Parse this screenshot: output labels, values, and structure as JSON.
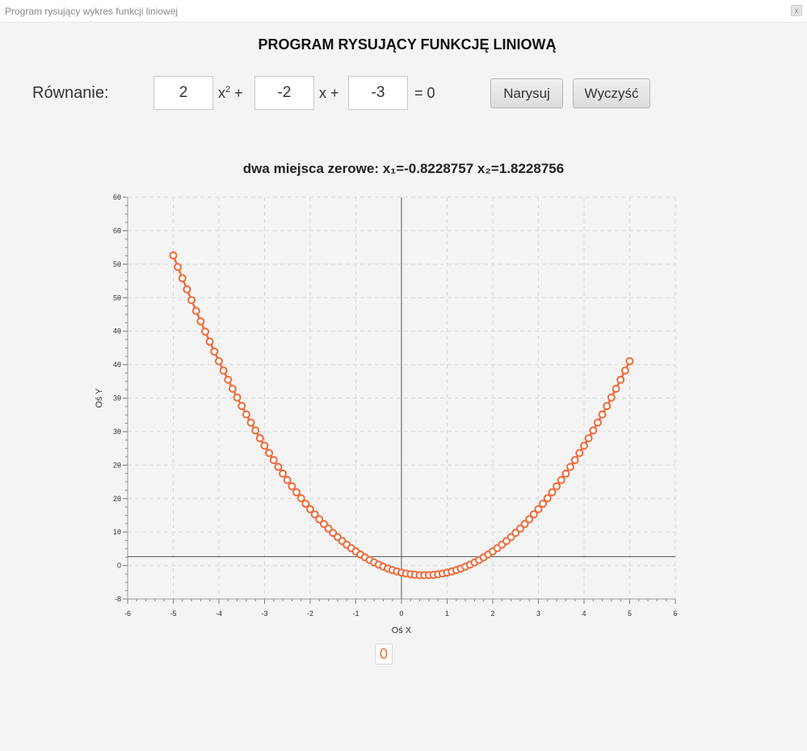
{
  "window": {
    "title": "Program rysujący wykres funkcji liniowej",
    "close_symbol": "x"
  },
  "header": {
    "title": "PROGRAM RYSUJĄCY FUNKCJĘ LINIOWĄ"
  },
  "equation": {
    "label": "Równanie:",
    "a": "2",
    "b": "-2",
    "c": "-3",
    "x2_term_base": "x",
    "x2_term_exp": "2",
    "plus1": "+",
    "x_term": "x +",
    "eq_zero": "= 0"
  },
  "buttons": {
    "draw": "Narysuj",
    "clear": "Wyczyść"
  },
  "roots": {
    "label": "dwa miejsca zerowe:",
    "x1": "x₁=-0.8228757",
    "x2": "x₂=1.8228756"
  },
  "badge": {
    "value": "0"
  },
  "colors": {
    "series": "#f06a3a",
    "axis": "#555555",
    "grid": "#d8d8d8"
  },
  "chart_data": {
    "type": "line",
    "xlabel": "Oś X",
    "ylabel": "Oś Y",
    "xlim": [
      -6,
      6
    ],
    "ylim": [
      -8,
      68
    ],
    "x_ticks": [
      "-6",
      "-5",
      "-4",
      "-3",
      "-2",
      "-1",
      "0",
      "1",
      "2",
      "3",
      "4",
      "5",
      "6"
    ],
    "y_ticks": [
      "-8",
      "0",
      "1θ",
      "2θ",
      "2θ",
      "3θ",
      "3θ",
      "4θ",
      "4θ",
      "5θ",
      "5θ",
      "6θ",
      "6θ"
    ],
    "grid": true,
    "series": [
      {
        "coefficients": [
          2,
          -2,
          -3
        ],
        "x_start": -5,
        "x_end": 5,
        "step": 0.1,
        "marker": "open-circle"
      }
    ]
  }
}
